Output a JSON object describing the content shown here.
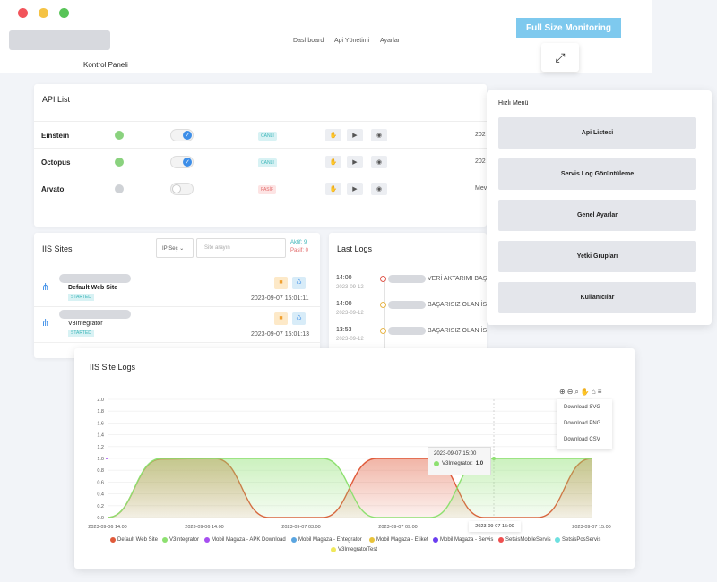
{
  "header": {
    "nav": [
      "Dashboard",
      "Api Yönetimi",
      "Ayarlar"
    ],
    "page_title": "Kontrol Paneli",
    "full_size_label": "Full Size Monitoring"
  },
  "colors": {
    "green": "#8ad27e",
    "blue": "#3d8ee8",
    "red": "#e74c3c",
    "gray": "#cfd2d6"
  },
  "api_list": {
    "title": "API List",
    "rows": [
      {
        "name": "Einstein",
        "status_color": "#8ad27e",
        "toggle_on": true,
        "badge": "CANLI",
        "badge_bg": "#d8f2f4",
        "badge_color": "#3bb5b8",
        "trail": "202"
      },
      {
        "name": "Octopus",
        "status_color": "#8ad27e",
        "toggle_on": true,
        "badge": "CANLI",
        "badge_bg": "#d8f2f4",
        "badge_color": "#3bb5b8",
        "trail": "202"
      },
      {
        "name": "Arvato",
        "status_color": "#cfd2d6",
        "toggle_on": false,
        "badge": "PASİF",
        "badge_bg": "#fde4e4",
        "badge_color": "#e26a6a",
        "trail": "Mev"
      }
    ]
  },
  "quick_menu": {
    "title": "Hızlı Menü",
    "items": [
      "Api Listesi",
      "Servis Log Görüntüleme",
      "Genel Ayarlar",
      "Yetki Grupları",
      "Kullanıcılar"
    ]
  },
  "iis_sites": {
    "title": "IIS Sites",
    "ip_select": "IP Seç",
    "search_placeholder": "Site arayın",
    "active_label": "Aktif: 9",
    "passive_label": "Pasif: 0",
    "sites": [
      {
        "name": "Default Web Site",
        "status": "STARTED",
        "time": "2023-09-07 15:01:11"
      },
      {
        "name": "V3Integrator",
        "status": "STARTED",
        "time": "2023-09-07 15:01:13"
      }
    ]
  },
  "last_logs": {
    "title": "Last Logs",
    "entries": [
      {
        "time": "14:00",
        "date": "2023-09-12",
        "dot": "#e05a4f",
        "text": "VERİ AKTARIMI BAŞA"
      },
      {
        "time": "14:00",
        "date": "2023-09-12",
        "dot": "#e8b547",
        "text": "BAŞARISIZ OLAN İSTE"
      },
      {
        "time": "13:53",
        "date": "2023-09-12",
        "dot": "#e8b547",
        "text": "BAŞARISIZ OLAN İSTEKLER VAR"
      }
    ]
  },
  "chart_card": {
    "title": "IIS Site Logs",
    "download": [
      "Download SVG",
      "Download PNG",
      "Download CSV"
    ],
    "tooltip": {
      "date": "2023-09-07 15:00",
      "series": "V3Integrator:",
      "value": "1.0"
    },
    "crosshair_label": "2023-09-07 15:00"
  },
  "chart_data": {
    "type": "area",
    "title": "IIS Site Logs",
    "xlabel": "",
    "ylabel": "",
    "ylim": [
      0,
      2
    ],
    "yticks": [
      "2.0",
      "1.8",
      "1.6",
      "1.4",
      "1.2",
      "1.0",
      "0.8",
      "0.6",
      "0.4",
      "0.2",
      "0.0"
    ],
    "xtick_labels": [
      "2023-09-06 14:00",
      "2023-09-06 14:00",
      "2023-09-07 03:00",
      "2023-09-07 09:00",
      "2023-09-07 15:00",
      "2023-09-07 15:00"
    ],
    "series": [
      {
        "name": "Default Web Site",
        "color": "#e05a3a",
        "values": [
          0,
          0.99,
          1.0,
          0.0,
          0.0,
          1.0,
          1.0,
          0.0,
          0.0,
          1.0
        ]
      },
      {
        "name": "V3Integrator",
        "color": "#8de070",
        "values": [
          0,
          1.0,
          1.0,
          1.0,
          1.0,
          0.0,
          0.0,
          1.0,
          1.0,
          1.0
        ]
      },
      {
        "name": "Mobil Magaza - APK Download",
        "color": "#a64ff0",
        "values": []
      },
      {
        "name": "Mobil Magaza - Entegrator",
        "color": "#5aa5e0",
        "values": []
      },
      {
        "name": "Mobil Magaza - Etiket",
        "color": "#e8c33a",
        "values": []
      },
      {
        "name": "Mobil Magaza - Servis",
        "color": "#6b3ef0",
        "values": []
      },
      {
        "name": "SetsisMobileServis",
        "color": "#ef4f4f",
        "values": []
      },
      {
        "name": "SetsisPosServis",
        "color": "#6de0e0",
        "values": []
      },
      {
        "name": "V3IntegratorTest",
        "color": "#f0e85a",
        "values": []
      }
    ]
  }
}
